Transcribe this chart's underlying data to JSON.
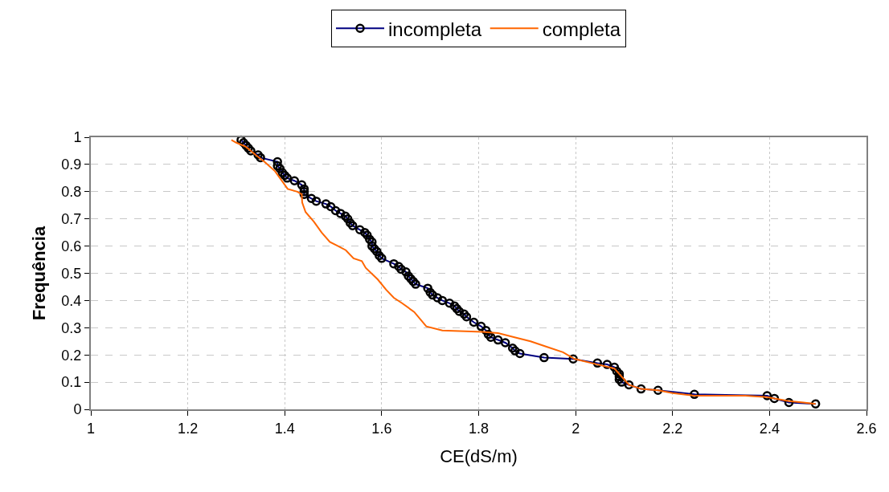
{
  "chart_data": {
    "type": "line",
    "xlabel": "CE(dS/m)",
    "ylabel": "Frequência",
    "xlim": [
      1,
      2.6
    ],
    "xticks": [
      1,
      1.2,
      1.4,
      1.6,
      1.8,
      2,
      2.2,
      2.4,
      2.6
    ],
    "ylim": [
      0,
      1
    ],
    "yticks": [
      0,
      0.1,
      0.2,
      0.3,
      0.4,
      0.5,
      0.6,
      0.7,
      0.8,
      0.9,
      1
    ],
    "grid": true,
    "legend": "top",
    "series": [
      {
        "name": "incompleta",
        "color": "#000080",
        "marker": "circle",
        "x": [
          1.31,
          1.315,
          1.32,
          1.325,
          1.33,
          1.345,
          1.35,
          1.385,
          1.385,
          1.39,
          1.395,
          1.4,
          1.405,
          1.42,
          1.435,
          1.44,
          1.44,
          1.44,
          1.455,
          1.465,
          1.485,
          1.495,
          1.505,
          1.515,
          1.525,
          1.53,
          1.535,
          1.54,
          1.555,
          1.565,
          1.57,
          1.575,
          1.58,
          1.58,
          1.585,
          1.59,
          1.595,
          1.6,
          1.625,
          1.635,
          1.64,
          1.65,
          1.655,
          1.66,
          1.665,
          1.67,
          1.695,
          1.7,
          1.705,
          1.715,
          1.725,
          1.74,
          1.75,
          1.755,
          1.76,
          1.77,
          1.775,
          1.79,
          1.805,
          1.815,
          1.82,
          1.825,
          1.84,
          1.855,
          1.87,
          1.875,
          1.885,
          1.935,
          1.995,
          2.045,
          2.065,
          2.08,
          2.085,
          2.09,
          2.09,
          2.09,
          2.095,
          2.11,
          2.135,
          2.17,
          2.245,
          2.395,
          2.41,
          2.44,
          2.495
        ],
        "values": [
          0.99,
          0.98,
          0.97,
          0.96,
          0.95,
          0.935,
          0.925,
          0.91,
          0.895,
          0.885,
          0.87,
          0.86,
          0.85,
          0.84,
          0.825,
          0.81,
          0.8,
          0.79,
          0.775,
          0.765,
          0.755,
          0.745,
          0.73,
          0.72,
          0.71,
          0.7,
          0.685,
          0.675,
          0.66,
          0.65,
          0.64,
          0.625,
          0.615,
          0.6,
          0.59,
          0.58,
          0.565,
          0.555,
          0.535,
          0.525,
          0.515,
          0.505,
          0.49,
          0.48,
          0.47,
          0.46,
          0.445,
          0.43,
          0.42,
          0.41,
          0.4,
          0.39,
          0.38,
          0.37,
          0.36,
          0.35,
          0.34,
          0.32,
          0.305,
          0.29,
          0.275,
          0.265,
          0.255,
          0.245,
          0.225,
          0.215,
          0.205,
          0.19,
          0.185,
          0.17,
          0.165,
          0.155,
          0.14,
          0.13,
          0.12,
          0.11,
          0.1,
          0.09,
          0.075,
          0.07,
          0.055,
          0.05,
          0.04,
          0.025,
          0.02
        ]
      },
      {
        "name": "completa",
        "color": "#ff6600",
        "marker": "none",
        "x": [
          1.29,
          1.3,
          1.32,
          1.34,
          1.36,
          1.38,
          1.396,
          1.406,
          1.426,
          1.435,
          1.436,
          1.443,
          1.46,
          1.476,
          1.493,
          1.51,
          1.526,
          1.542,
          1.559,
          1.567,
          1.592,
          1.609,
          1.625,
          1.642,
          1.667,
          1.692,
          1.725,
          1.808,
          1.84,
          1.874,
          1.907,
          1.94,
          1.974,
          1.998,
          2.04,
          2.08,
          2.11,
          2.135,
          2.17,
          2.2,
          2.245,
          2.3,
          2.35,
          2.395,
          2.41,
          2.44,
          2.47,
          2.495
        ],
        "values": [
          0.99,
          0.98,
          0.965,
          0.935,
          0.907,
          0.875,
          0.835,
          0.81,
          0.8,
          0.79,
          0.76,
          0.725,
          0.69,
          0.65,
          0.615,
          0.6,
          0.585,
          0.555,
          0.545,
          0.52,
          0.477,
          0.44,
          0.41,
          0.39,
          0.358,
          0.305,
          0.29,
          0.285,
          0.28,
          0.265,
          0.25,
          0.23,
          0.21,
          0.185,
          0.167,
          0.15,
          0.09,
          0.075,
          0.07,
          0.06,
          0.05,
          0.05,
          0.05,
          0.045,
          0.04,
          0.03,
          0.025,
          0.02
        ]
      }
    ]
  }
}
